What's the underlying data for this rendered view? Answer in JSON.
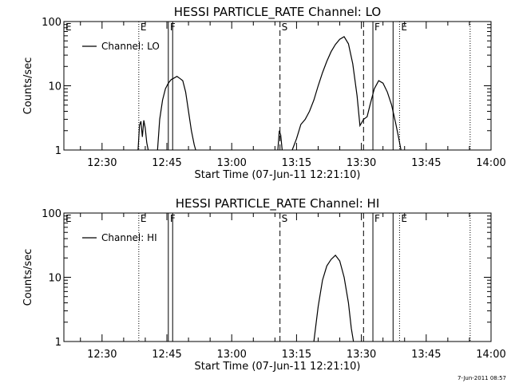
{
  "chart_data": [
    {
      "type": "line",
      "title": "HESSI PARTICLE_RATE Channel: LO",
      "xlabel": "Start Time (07-Jun-11 12:21:10)",
      "ylabel": "Counts/sec",
      "yscale": "log",
      "ylim": [
        1,
        100
      ],
      "xlim": [
        "12:21:10",
        "14:00:00"
      ],
      "grid": false,
      "legend": {
        "placement": "top-left",
        "entries": [
          "Channel: LO"
        ]
      },
      "x_ticks": [
        "12:30",
        "12:45",
        "13:00",
        "13:15",
        "13:30",
        "13:45",
        "14:00"
      ],
      "y_ticks": [
        "1",
        "10",
        "100"
      ],
      "markers": [
        {
          "time": "12:38:30",
          "style": "dotted",
          "label": "E"
        },
        {
          "time": "12:45:20",
          "style": "solid",
          "label": "F"
        },
        {
          "time": "12:46:20",
          "style": "solid",
          "label": ""
        },
        {
          "time": "13:11:10",
          "style": "dashed",
          "label": "S"
        },
        {
          "time": "13:30:30",
          "style": "dashed",
          "label": ""
        },
        {
          "time": "13:32:40",
          "style": "solid",
          "label": "F"
        },
        {
          "time": "13:37:20",
          "style": "solid",
          "label": ""
        },
        {
          "time": "13:38:50",
          "style": "dotted",
          "label": "E"
        },
        {
          "time": "13:55:10",
          "style": "dotted",
          "label": ""
        }
      ],
      "series": [
        {
          "name": "Channel: LO",
          "segments": [
            {
              "x": [
                "12:38:20",
                "12:38:40",
                "12:39:00",
                "12:39:20",
                "12:39:40",
                "12:40:00",
                "12:40:20",
                "12:40:40"
              ],
              "y": [
                1,
                2.4,
                2.8,
                1.6,
                2.9,
                2.2,
                1.3,
                1
              ]
            },
            {
              "x": [
                "12:42:50",
                "12:43:20",
                "12:44:00",
                "12:44:40",
                "12:45:20",
                "12:46:00",
                "12:46:40",
                "12:47:20",
                "12:48:00",
                "12:48:40",
                "12:49:20",
                "12:50:00",
                "12:50:40",
                "12:51:20",
                "12:51:40"
              ],
              "y": [
                1,
                3,
                6,
                9,
                11,
                12.5,
                13.2,
                14,
                13,
                12,
                8,
                4,
                2,
                1.2,
                1
              ]
            },
            {
              "x": [
                "13:10:40",
                "13:11:00",
                "13:11:20",
                "13:11:40"
              ],
              "y": [
                1,
                2,
                1.7,
                1
              ]
            },
            {
              "x": [
                "13:14:00",
                "13:15:00",
                "13:16:00",
                "13:17:00",
                "13:18:00",
                "13:19:00",
                "13:20:00",
                "13:21:00",
                "13:22:00",
                "13:23:00",
                "13:24:00",
                "13:25:00",
                "13:26:00",
                "13:27:00",
                "13:28:00",
                "13:29:00",
                "13:29:40",
                "13:30:30",
                "13:31:20",
                "13:32:00",
                "13:33:00",
                "13:34:00",
                "13:35:00",
                "13:36:00",
                "13:37:00",
                "13:38:00",
                "13:38:40",
                "13:39:10"
              ],
              "y": [
                1,
                1.5,
                2.5,
                3,
                4,
                6,
                10,
                16,
                24,
                34,
                44,
                53,
                58,
                45,
                22,
                7,
                2.4,
                3,
                3.3,
                5,
                9,
                12,
                11,
                8,
                5,
                2.5,
                1.5,
                1
              ]
            }
          ]
        }
      ]
    },
    {
      "type": "line",
      "title": "HESSI PARTICLE_RATE Channel: HI",
      "xlabel": "Start Time (07-Jun-11 12:21:10)",
      "ylabel": "Counts/sec",
      "yscale": "log",
      "ylim": [
        1,
        100
      ],
      "xlim": [
        "12:21:10",
        "14:00:00"
      ],
      "grid": false,
      "legend": {
        "placement": "top-left",
        "entries": [
          "Channel: HI"
        ]
      },
      "x_ticks": [
        "12:30",
        "12:45",
        "13:00",
        "13:15",
        "13:30",
        "13:45",
        "14:00"
      ],
      "y_ticks": [
        "1",
        "10",
        "100"
      ],
      "markers": [
        {
          "time": "12:38:30",
          "style": "dotted",
          "label": "E"
        },
        {
          "time": "12:45:20",
          "style": "solid",
          "label": "F"
        },
        {
          "time": "12:46:20",
          "style": "solid",
          "label": ""
        },
        {
          "time": "13:11:10",
          "style": "dashed",
          "label": "S"
        },
        {
          "time": "13:30:30",
          "style": "dashed",
          "label": ""
        },
        {
          "time": "13:32:40",
          "style": "solid",
          "label": "F"
        },
        {
          "time": "13:37:20",
          "style": "solid",
          "label": ""
        },
        {
          "time": "13:38:50",
          "style": "dotted",
          "label": "E"
        },
        {
          "time": "13:55:10",
          "style": "dotted",
          "label": ""
        }
      ],
      "series": [
        {
          "name": "Channel: HI",
          "segments": [
            {
              "x": [
                "13:19:00",
                "13:20:00",
                "13:21:00",
                "13:22:00",
                "13:23:00",
                "13:24:00",
                "13:25:00",
                "13:26:00",
                "13:27:00",
                "13:27:40",
                "13:28:10"
              ],
              "y": [
                1,
                3.5,
                9,
                15,
                19,
                22,
                18,
                10,
                4,
                1.6,
                1
              ]
            }
          ]
        }
      ]
    }
  ],
  "footer": {
    "timestamp": "7-Jun-2011 08:57"
  }
}
